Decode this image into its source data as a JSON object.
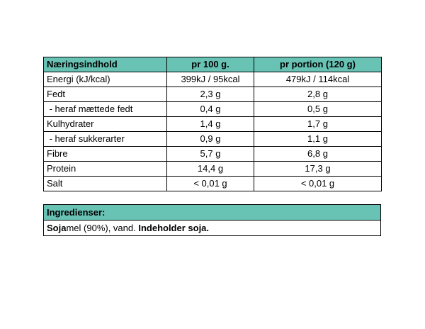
{
  "nutrition": {
    "headers": [
      "Næringsindhold",
      "pr 100 g.",
      "pr portion (120 g)"
    ],
    "rows": [
      {
        "label": "Energi (kJ/kcal)",
        "per100": "399kJ /  95kcal",
        "perPortion": "479kJ /  114kcal"
      },
      {
        "label": "Fedt",
        "per100": "2,3 g",
        "perPortion": "2,8 g"
      },
      {
        "label": " - heraf mættede fedt",
        "per100": "0,4 g",
        "perPortion": "0,5 g"
      },
      {
        "label": "Kulhydrater",
        "per100": "1,4 g",
        "perPortion": "1,7 g"
      },
      {
        "label": " - heraf sukkerarter",
        "per100": "0,9 g",
        "perPortion": "1,1 g"
      },
      {
        "label": "Fibre",
        "per100": "5,7 g",
        "perPortion": "6,8 g"
      },
      {
        "label": "Protein",
        "per100": "14,4 g",
        "perPortion": "17,3 g"
      },
      {
        "label": "Salt",
        "per100": "< 0,01 g",
        "perPortion": "< 0,01 g"
      }
    ]
  },
  "ingredients": {
    "header": "Ingredienser:",
    "parts": [
      {
        "text": "Soja",
        "bold": true
      },
      {
        "text": "mel (90%), vand. ",
        "bold": false
      },
      {
        "text": "Indeholder soja.",
        "bold": true
      }
    ]
  },
  "colors": {
    "header_bg": "#68c3b5",
    "border": "#000000"
  }
}
